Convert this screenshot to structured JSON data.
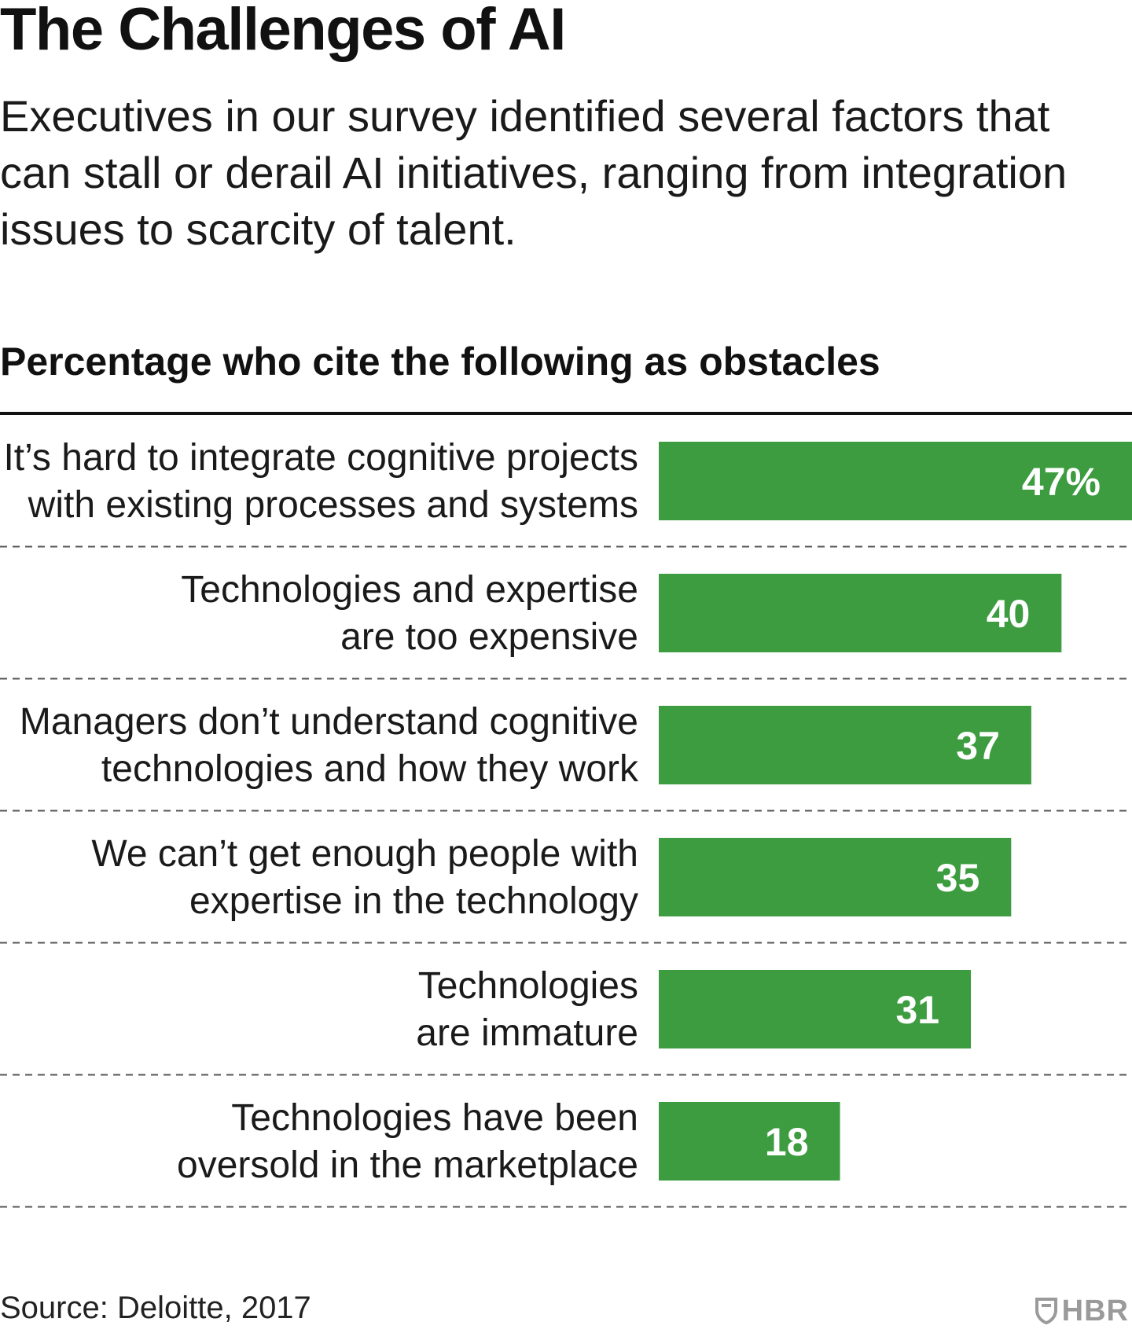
{
  "title": "The Challenges of AI",
  "subtitle": "Executives in our survey identified several factors that can stall or derail AI initiatives, ranging from integration issues to scarcity of talent.",
  "source": "Source: Deloitte, 2017",
  "brand": "HBR",
  "colors": {
    "bar": "#3c9c3f",
    "value_text": "#ffffff",
    "rule": "#111111",
    "divider": "#555555",
    "brand": "#9a9a9a"
  },
  "chart_data": {
    "type": "bar",
    "orientation": "horizontal",
    "title": "Percentage who cite the following as obstacles",
    "unit": "%",
    "xlim": [
      0,
      47
    ],
    "categories": [
      [
        "It’s hard to integrate cognitive projects",
        "with existing processes and systems"
      ],
      [
        "Technologies and expertise",
        "are too expensive"
      ],
      [
        "Managers don’t understand cognitive",
        "technologies and how they work"
      ],
      [
        "We can’t get enough people with",
        "expertise in the technology"
      ],
      [
        "Technologies",
        "are immature"
      ],
      [
        "Technologies have been",
        "oversold in the marketplace"
      ]
    ],
    "values": [
      47,
      40,
      37,
      35,
      31,
      18
    ],
    "value_labels": [
      "47%",
      "40",
      "37",
      "35",
      "31",
      "18"
    ]
  }
}
